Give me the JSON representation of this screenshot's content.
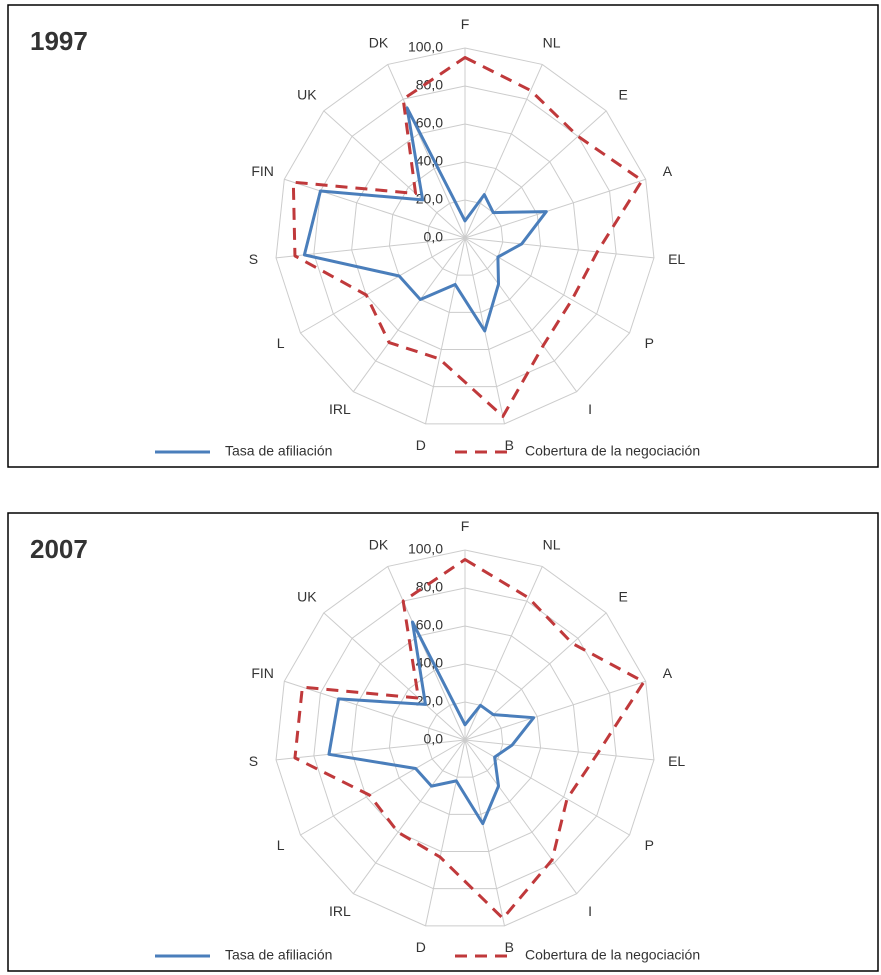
{
  "chart_data": [
    {
      "type": "radar",
      "title": "1997",
      "categories": [
        "F",
        "NL",
        "E",
        "A",
        "EL",
        "P",
        "I",
        "B",
        "D",
        "IRL",
        "L",
        "S",
        "FIN",
        "UK",
        "DK"
      ],
      "ylim": [
        0,
        100
      ],
      "yticks": [
        {
          "value": 0,
          "label": "0,0"
        },
        {
          "value": 20,
          "label": "20,0"
        },
        {
          "value": 40,
          "label": "40,0"
        },
        {
          "value": 60,
          "label": "60,0"
        },
        {
          "value": 80,
          "label": "80,0"
        },
        {
          "value": 100,
          "label": "100,0"
        }
      ],
      "grid": true,
      "series": [
        {
          "name": "Tasa de afiliación",
          "color": "#4a7ebb",
          "line_style": "solid",
          "values": [
            9,
            25,
            20,
            45,
            30,
            20,
            30,
            50,
            25,
            40,
            40,
            85,
            80,
            30,
            75
          ]
        },
        {
          "name": "Cobertura de la negociación",
          "color": "#c0393b",
          "line_style": "dashed",
          "values": [
            95,
            85,
            80,
            98,
            70,
            65,
            70,
            96,
            65,
            68,
            60,
            90,
            95,
            35,
            80
          ]
        }
      ]
    },
    {
      "type": "radar",
      "title": "2007",
      "categories": [
        "F",
        "NL",
        "E",
        "A",
        "EL",
        "P",
        "I",
        "B",
        "D",
        "IRL",
        "L",
        "S",
        "FIN",
        "UK",
        "DK"
      ],
      "ylim": [
        0,
        100
      ],
      "yticks": [
        {
          "value": 0,
          "label": "0,0"
        },
        {
          "value": 20,
          "label": "20,0"
        },
        {
          "value": 40,
          "label": "40,0"
        },
        {
          "value": 60,
          "label": "60,0"
        },
        {
          "value": 80,
          "label": "80,0"
        },
        {
          "value": 100,
          "label": "100,0"
        }
      ],
      "grid": true,
      "series": [
        {
          "name": "Tasa de afiliación",
          "color": "#4a7ebb",
          "line_style": "solid",
          "values": [
            8,
            20,
            20,
            38,
            25,
            18,
            30,
            45,
            22,
            30,
            30,
            72,
            70,
            28,
            68
          ]
        },
        {
          "name": "Cobertura de la negociación",
          "color": "#c0393b",
          "line_style": "dashed",
          "values": [
            95,
            82,
            76,
            99,
            70,
            62,
            78,
            96,
            63,
            60,
            58,
            90,
            90,
            33,
            80
          ]
        }
      ]
    }
  ]
}
